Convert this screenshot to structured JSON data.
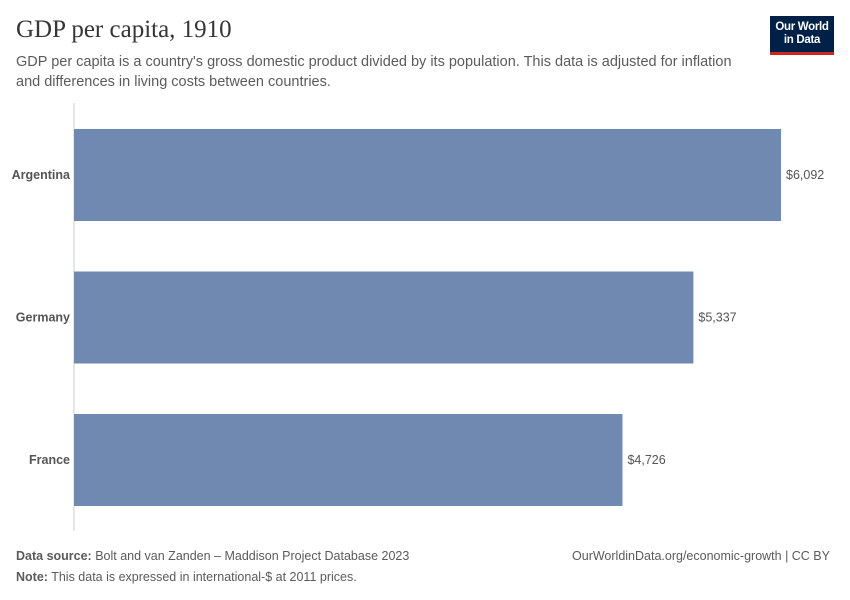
{
  "header": {
    "title": "GDP per capita, 1910",
    "subtitle": "GDP per capita is a country's gross domestic product divided by its population. This data is adjusted for inflation and differences in living costs between countries.",
    "logo": "Our World in Data"
  },
  "chart_data": {
    "type": "bar",
    "orientation": "horizontal",
    "categories": [
      "Argentina",
      "Germany",
      "France"
    ],
    "values": [
      6092,
      5337,
      4726
    ],
    "value_labels": [
      "$6,092",
      "$5,337",
      "$4,726"
    ],
    "bar_color": "#6f89b1",
    "xlim": [
      0,
      6092
    ]
  },
  "footer": {
    "source_label": "Data source:",
    "source": "Bolt and van Zanden – Maddison Project Database 2023",
    "note_label": "Note:",
    "note": "This data is expressed in international-$ at 2011 prices.",
    "url": "OurWorldinData.org/economic-growth | CC BY"
  }
}
